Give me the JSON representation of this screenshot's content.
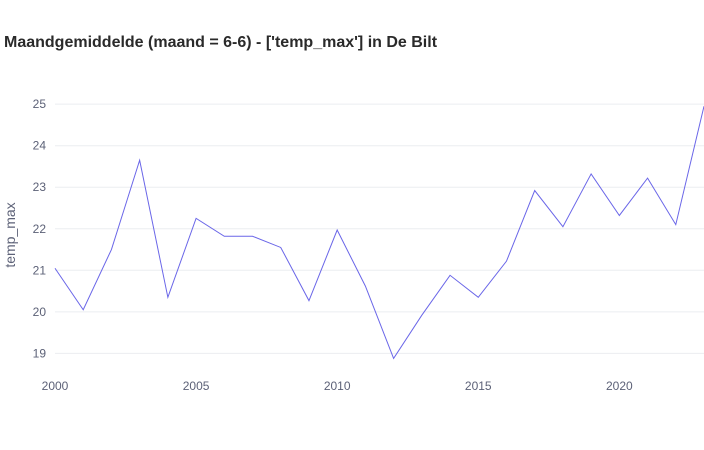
{
  "chart_data": {
    "type": "line",
    "title": "Maandgemiddelde (maand = 6-6) - ['temp_max'] in De Bilt",
    "xlabel": "",
    "ylabel": "temp_max",
    "xlim": [
      2000,
      2023
    ],
    "ylim": [
      18.6,
      25.1
    ],
    "x_ticks": [
      2000,
      2005,
      2010,
      2015,
      2020
    ],
    "y_ticks": [
      19,
      20,
      21,
      22,
      23,
      24,
      25
    ],
    "grid": true,
    "legend": "none",
    "series": [
      {
        "color": "#6a66e8",
        "x": [
          2000,
          2001,
          2002,
          2003,
          2004,
          2005,
          2006,
          2007,
          2008,
          2009,
          2010,
          2011,
          2012,
          2013,
          2014,
          2015,
          2016,
          2017,
          2018,
          2019,
          2020,
          2021,
          2022,
          2023
        ],
        "y": [
          21.05,
          20.05,
          21.5,
          23.65,
          20.35,
          22.25,
          21.82,
          21.82,
          21.55,
          20.27,
          21.97,
          20.62,
          18.88,
          19.92,
          20.88,
          20.35,
          21.22,
          22.92,
          22.05,
          23.32,
          22.32,
          23.22,
          22.1,
          24.95
        ]
      }
    ]
  }
}
